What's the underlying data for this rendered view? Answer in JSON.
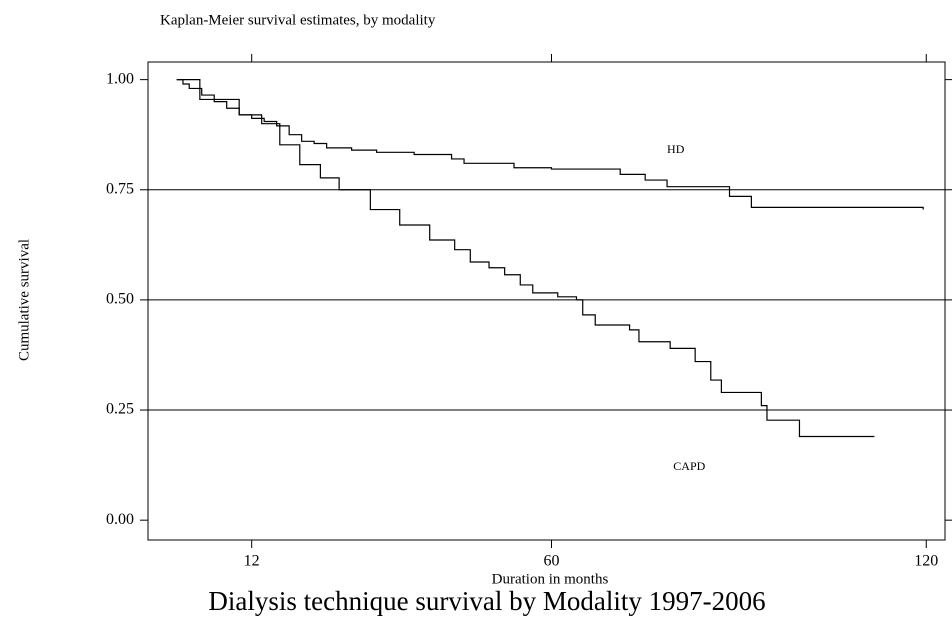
{
  "chart_data": {
    "type": "line",
    "step": "post",
    "title": "Kaplan-Meier survival estimates, by modality",
    "x_label": "Duration in months",
    "y_label": "Cumulative survival",
    "caption": "Dialysis technique survival by Modality 1997-2006",
    "series": [
      {
        "name": "HD",
        "color": "#000000",
        "x": [
          0,
          1,
          2,
          4,
          6,
          8,
          10,
          12,
          14,
          16,
          18,
          20,
          22,
          24,
          28,
          32,
          38,
          44,
          46,
          54,
          60,
          71,
          75,
          78.5,
          88.5,
          92,
          119.5
        ],
        "values": [
          1.0,
          0.99,
          0.98,
          0.965,
          0.95,
          0.935,
          0.92,
          0.912,
          0.905,
          0.895,
          0.875,
          0.86,
          0.855,
          0.845,
          0.84,
          0.835,
          0.83,
          0.82,
          0.81,
          0.8,
          0.797,
          0.785,
          0.772,
          0.757,
          0.735,
          0.71,
          0.705
        ]
      },
      {
        "name": "CAPD",
        "color": "#000000",
        "x": [
          0,
          3.7,
          10,
          13.6,
          16.5,
          19.7,
          23,
          26,
          31,
          35.7,
          40.5,
          44.5,
          47,
          50,
          52.5,
          55,
          57,
          61,
          64,
          65,
          67,
          72.5,
          74,
          79,
          83,
          85.5,
          87.2,
          93.6,
          94.5,
          99.7,
          111.7
        ],
        "values": [
          1.0,
          0.955,
          0.92,
          0.9,
          0.852,
          0.807,
          0.777,
          0.75,
          0.705,
          0.67,
          0.636,
          0.614,
          0.586,
          0.573,
          0.557,
          0.534,
          0.516,
          0.507,
          0.5,
          0.466,
          0.443,
          0.432,
          0.405,
          0.39,
          0.36,
          0.318,
          0.29,
          0.26,
          0.227,
          0.19,
          0.19
        ]
      }
    ],
    "annotations": [
      {
        "text": "HD",
        "x": 78.5,
        "y": 0.84
      },
      {
        "text": "CAPD",
        "x": 79.5,
        "y": 0.12
      }
    ],
    "xlim": [
      -4.6,
      123
    ],
    "ylim": [
      -0.045,
      1.04
    ],
    "xticks": [
      12,
      60,
      120
    ],
    "yticks": [
      {
        "value": 0,
        "label": "0.00"
      },
      {
        "value": 0.25,
        "label": "0.25"
      },
      {
        "value": 0.5,
        "label": "0.50"
      },
      {
        "value": 0.75,
        "label": "0.75"
      },
      {
        "value": 1,
        "label": "1.00"
      }
    ],
    "grid": "inner"
  }
}
